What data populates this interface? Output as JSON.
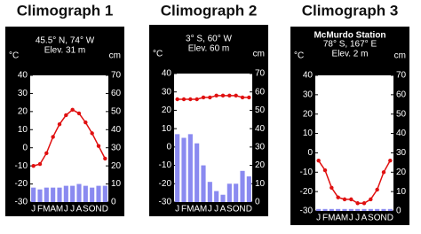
{
  "chart_data": [
    {
      "type": "climograph",
      "title": "Climograph 1",
      "location": "45.5° N, 74° W",
      "elevation": "Elev. 31 m",
      "ylabel": "°C",
      "y2label": "cm",
      "categories": [
        "J",
        "F",
        "M",
        "A",
        "M",
        "J",
        "J",
        "A",
        "S",
        "O",
        "N",
        "D"
      ],
      "ylim": [
        -30,
        40
      ],
      "yticks": [
        -30,
        -20,
        -10,
        0,
        10,
        20,
        30,
        40
      ],
      "y2lim": [
        0,
        70
      ],
      "y2ticks": [
        0,
        10,
        20,
        30,
        40,
        50,
        60,
        70
      ],
      "series": [
        {
          "type": "line",
          "color": "#e01010",
          "values": [
            -10,
            -9,
            -3,
            6,
            13,
            18,
            21,
            19,
            14,
            8,
            1,
            -6
          ]
        },
        {
          "type": "bar",
          "axis": "y2",
          "color": "#8a8af0",
          "values": [
            8,
            7,
            8,
            8,
            8,
            9,
            9,
            10,
            9,
            8,
            9,
            9
          ]
        }
      ]
    },
    {
      "type": "climograph",
      "title": "Climograph 2",
      "location": "3° S, 60° W",
      "elevation": "Elev. 60 m",
      "ylabel": "°C",
      "y2label": "cm",
      "categories": [
        "J",
        "F",
        "M",
        "A",
        "M",
        "J",
        "J",
        "A",
        "S",
        "O",
        "N",
        "D"
      ],
      "ylim": [
        -30,
        40
      ],
      "yticks": [
        -30,
        -20,
        -10,
        0,
        10,
        20,
        30,
        40
      ],
      "y2lim": [
        0,
        70
      ],
      "y2ticks": [
        0,
        10,
        20,
        30,
        40,
        50,
        60,
        70
      ],
      "series": [
        {
          "type": "line",
          "color": "#e01010",
          "values": [
            26,
            26,
            26,
            26,
            27,
            27,
            28,
            28,
            28,
            28,
            27,
            27
          ]
        },
        {
          "type": "bar",
          "axis": "y2",
          "color": "#8a8af0",
          "values": [
            37,
            35,
            37,
            32,
            20,
            11,
            6,
            4,
            10,
            10,
            17,
            14
          ]
        }
      ]
    },
    {
      "type": "climograph",
      "title": "Climograph 3",
      "station": "McMurdo Station",
      "location": "78° S, 167° E",
      "elevation": "Elev. 2 m",
      "ylabel": "°C",
      "y2label": "cm",
      "categories": [
        "J",
        "F",
        "M",
        "A",
        "M",
        "J",
        "J",
        "A",
        "S",
        "O",
        "N",
        "D"
      ],
      "ylim": [
        -30,
        40
      ],
      "yticks": [
        -30,
        -20,
        -10,
        0,
        10,
        20,
        30,
        40
      ],
      "y2lim": [
        0,
        70
      ],
      "y2ticks": [
        0,
        10,
        20,
        30,
        40,
        50,
        60,
        70
      ],
      "series": [
        {
          "type": "line",
          "color": "#e01010",
          "values": [
            -4,
            -9,
            -18,
            -23,
            -24,
            -24,
            -26,
            -26,
            -24,
            -19,
            -10,
            -4
          ]
        },
        {
          "type": "bar",
          "axis": "y2",
          "color": "#8a8af0",
          "values": [
            1,
            1,
            1,
            1,
            1,
            1,
            1,
            1,
            1,
            1,
            1,
            1
          ]
        }
      ]
    }
  ]
}
